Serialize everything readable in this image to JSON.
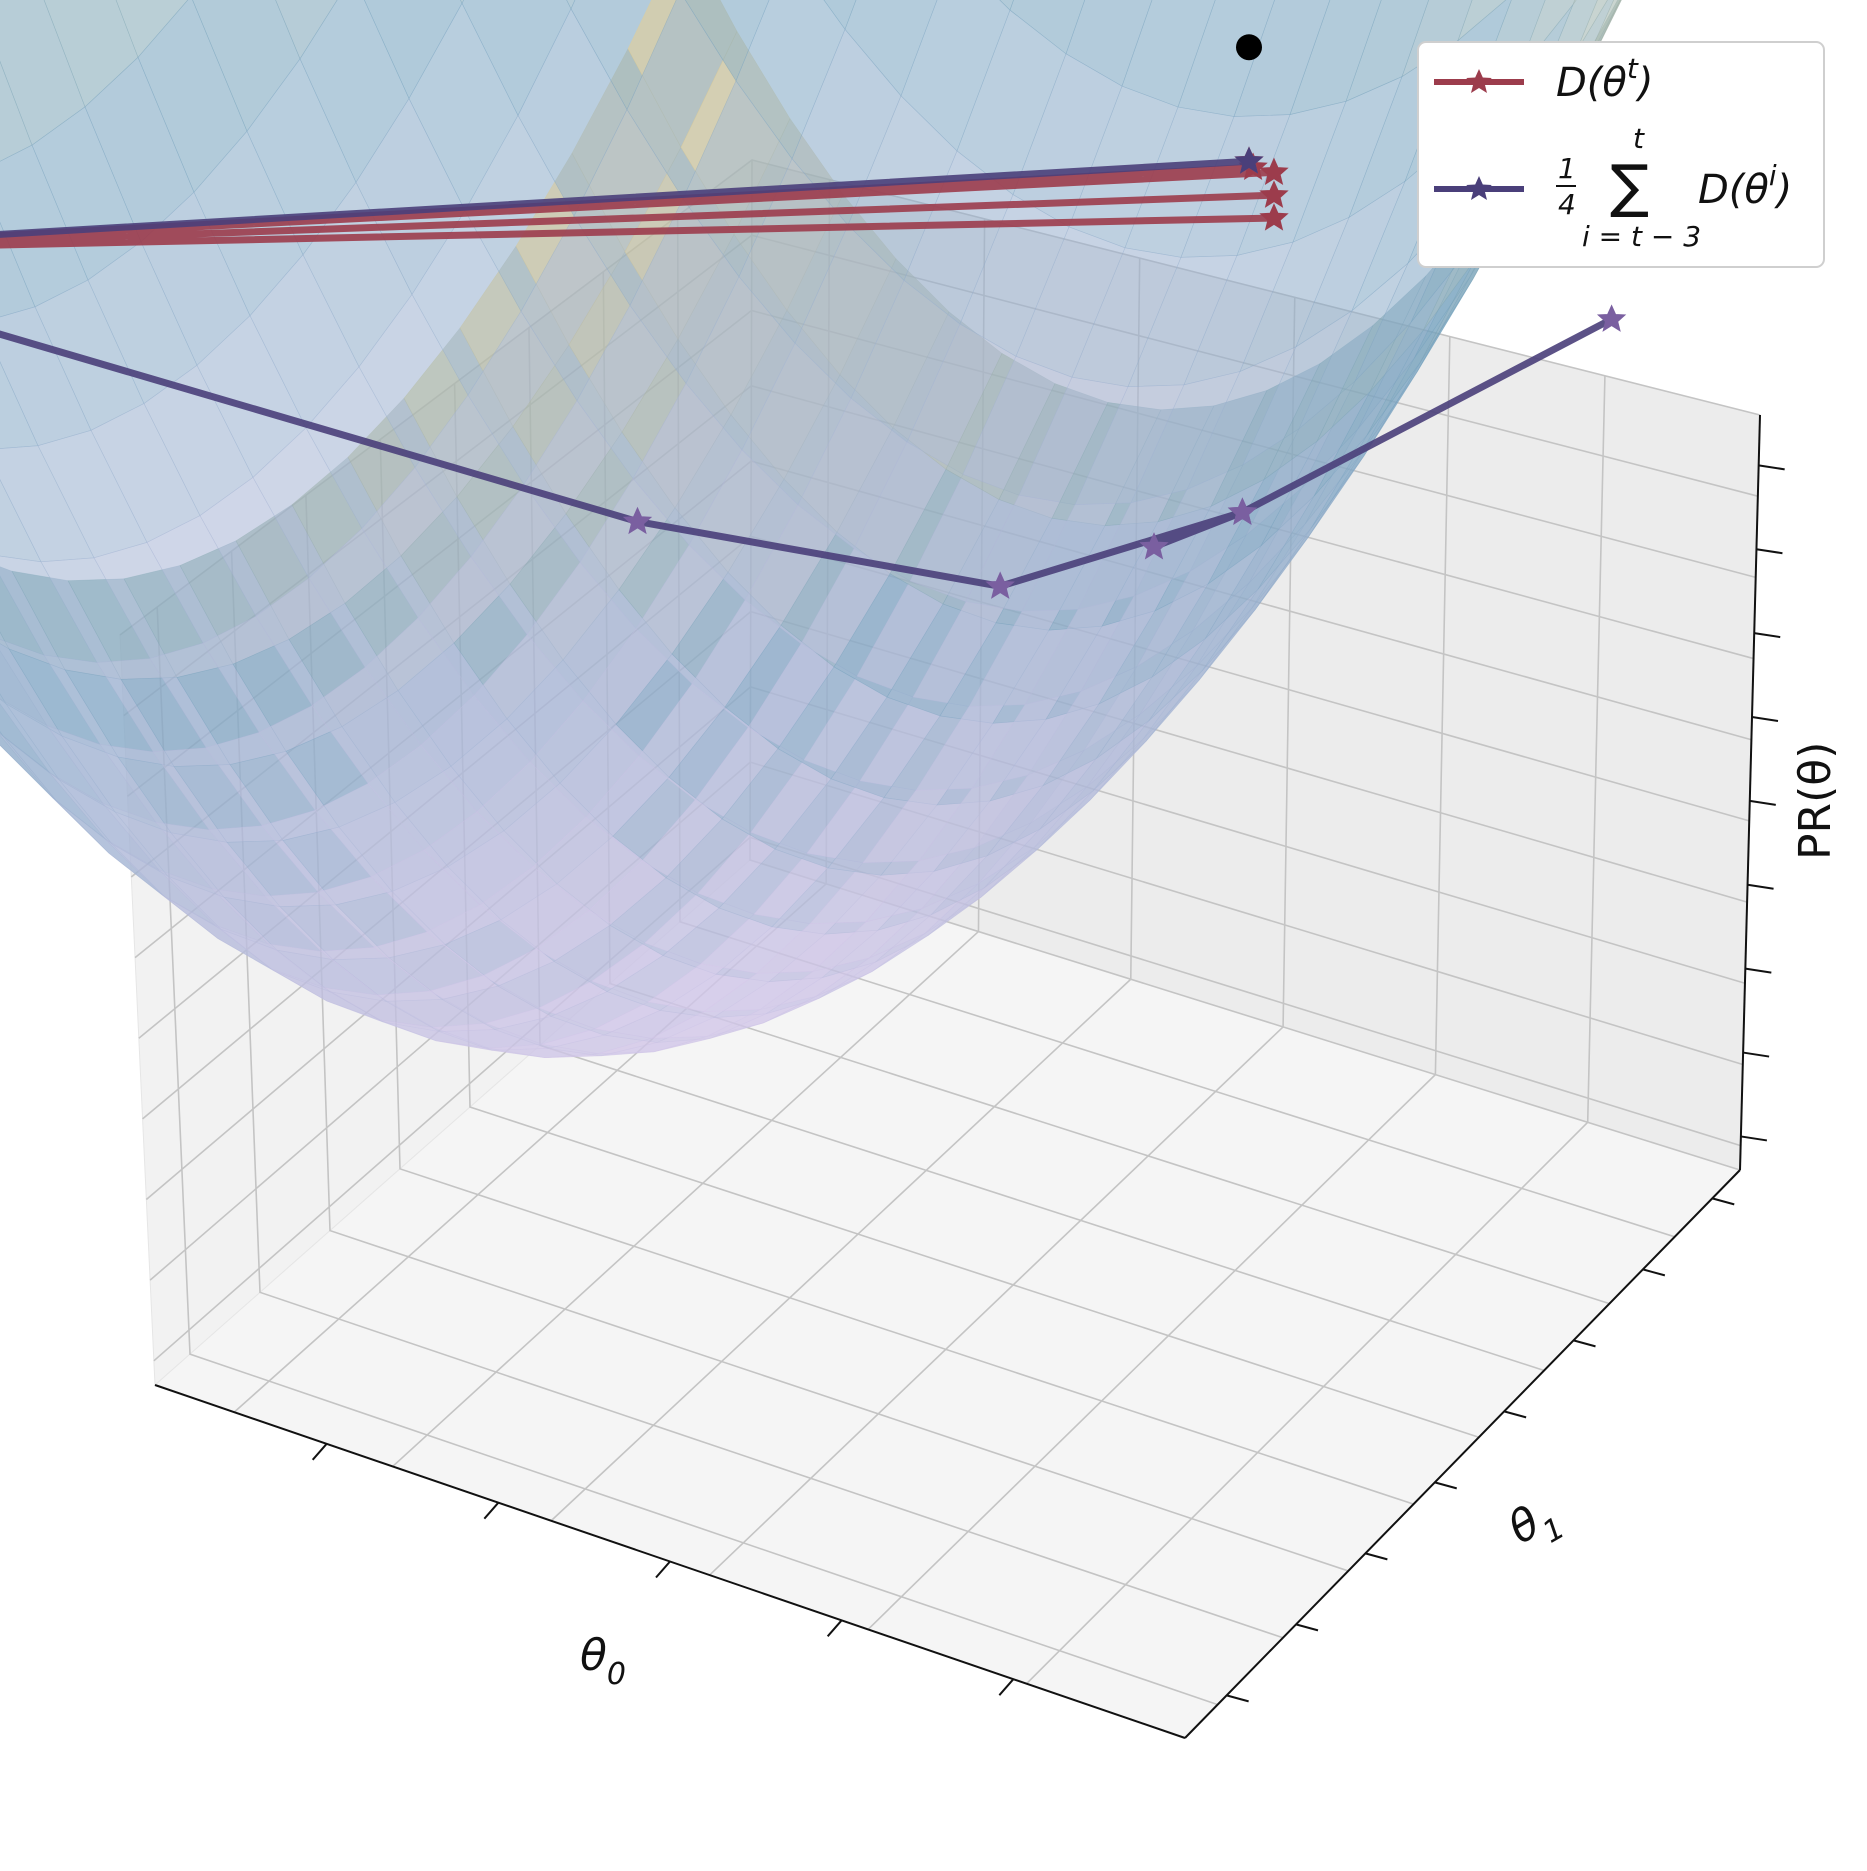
{
  "chart_data": {
    "type": "surface3d",
    "title": "",
    "axes": {
      "x": {
        "label": "θ",
        "label_sub": "0",
        "ticks": 6
      },
      "y": {
        "label": "θ",
        "label_sub": "1",
        "ticks": 8
      },
      "z": {
        "label": "PR(θ)",
        "ticks": 9
      },
      "grid": true,
      "tick_labels_shown": false
    },
    "surface": {
      "shape": "paraboloid bowl",
      "colormap": [
        "#d9c9ec",
        "#6f9fbb",
        "#e9cf8e"
      ]
    },
    "series": [
      {
        "name": "D(θ^t)",
        "legend_main": "D(θ",
        "legend_sup": "t",
        "legend_close": ")",
        "color": "#9c3c4c",
        "marker": "star",
        "points_xyz": [
          [
            -1.0,
            0.7,
            1.45
          ],
          [
            0.55,
            -0.6,
            1.18
          ],
          [
            -1.0,
            0.7,
            1.45
          ],
          [
            0.55,
            -0.6,
            1.22
          ],
          [
            -1.0,
            0.7,
            1.45
          ],
          [
            0.55,
            -0.6,
            1.26
          ],
          [
            -1.0,
            0.7,
            1.45
          ],
          [
            0.56,
            -0.55,
            1.3
          ],
          [
            0.6,
            -0.5,
            1.35
          ]
        ],
        "final_point_color": "#e05a4a"
      },
      {
        "name": "(1/4) Σ_{i=t-3}^{t} D(θ^i)",
        "legend_frac_num": "1",
        "legend_frac_den": "4",
        "legend_sum": "∑",
        "legend_sum_top": "t",
        "legend_sum_bottom": "i = t − 3",
        "legend_main": "D(θ",
        "legend_sup": "i",
        "legend_close": ")",
        "color": "#4a3f7a",
        "end_color": "#7a5fa0",
        "marker": "star",
        "points_xyz": [
          [
            0.6,
            -0.5,
            1.35
          ],
          [
            -1.0,
            0.7,
            1.45
          ],
          [
            -0.35,
            -0.35,
            0.55
          ],
          [
            0.08,
            -0.58,
            0.42
          ],
          [
            0.38,
            -0.72,
            0.55
          ],
          [
            0.85,
            -0.92,
            0.9
          ],
          [
            0.38,
            -0.72,
            0.55
          ],
          [
            0.26,
            -0.68,
            0.48
          ]
        ]
      }
    ],
    "optimum_point": {
      "xyz": [
        0.6,
        -0.5,
        1.55
      ],
      "color": "#000000"
    },
    "legend_position": "top-right"
  }
}
